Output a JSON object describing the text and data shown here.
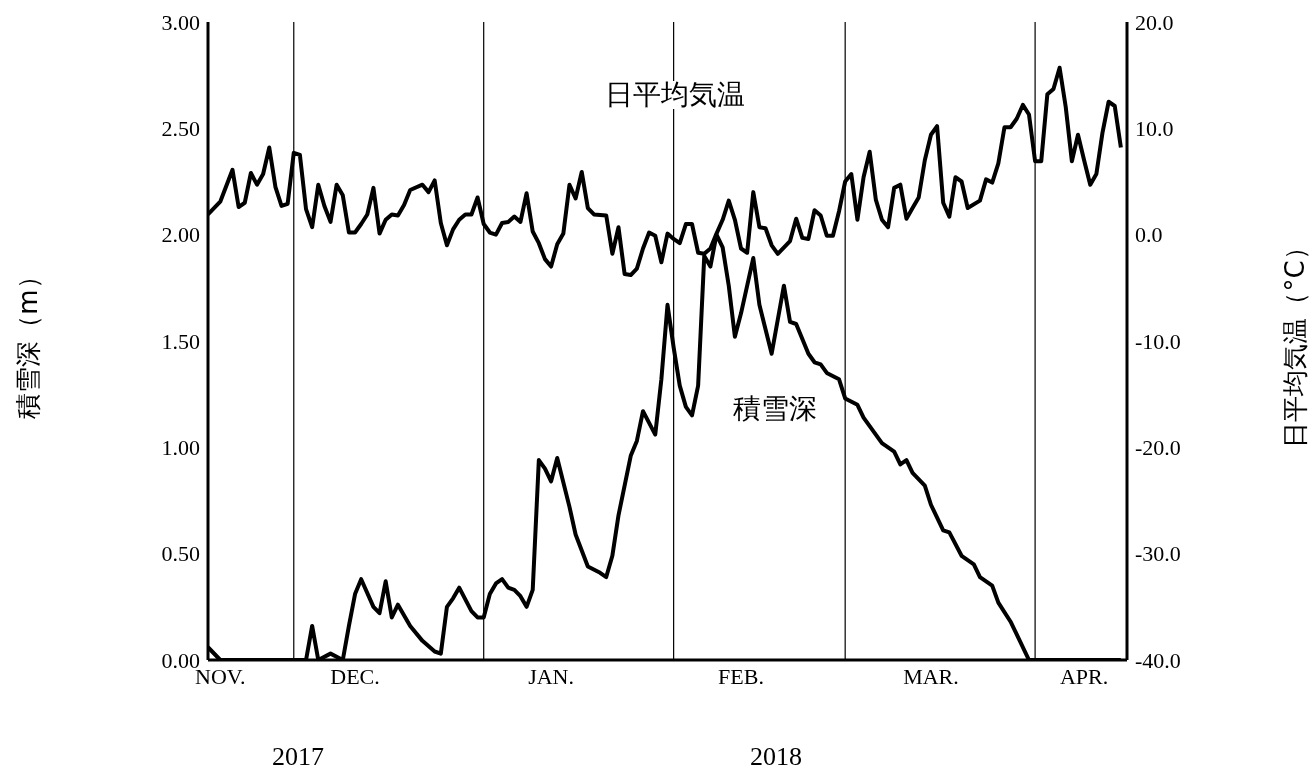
{
  "chart_data": {
    "type": "line",
    "ylabel": "積雪深（m）",
    "y2label": "日平均気温（°C）",
    "xlim": [
      "2017-11-17",
      "2018-04-16"
    ],
    "xticks": [
      {
        "value": "2017-11-19",
        "label": "NOV."
      },
      {
        "value": "2017-12-01",
        "label": null
      },
      {
        "value": "2017-12-11",
        "label": "DEC."
      },
      {
        "value": "2018-01-01",
        "label": null
      },
      {
        "value": "2018-01-12",
        "label": "JAN."
      },
      {
        "value": "2018-02-01",
        "label": null
      },
      {
        "value": "2018-02-12",
        "label": "FEB."
      },
      {
        "value": "2018-03-01",
        "label": null
      },
      {
        "value": "2018-03-15",
        "label": "MAR."
      },
      {
        "value": "2018-04-01",
        "label": null
      },
      {
        "value": "2018-04-09",
        "label": "APR."
      }
    ],
    "ylim": [
      0,
      3
    ],
    "yticks": [
      {
        "value": 0,
        "label": "0.00"
      },
      {
        "value": 0.5,
        "label": "0.50"
      },
      {
        "value": 1,
        "label": "1.00"
      },
      {
        "value": 1.5,
        "label": "1.50"
      },
      {
        "value": 2,
        "label": "2.00"
      },
      {
        "value": 2.5,
        "label": "2.50"
      },
      {
        "value": 3,
        "label": "3.00"
      }
    ],
    "y2lim": [
      -40,
      20
    ],
    "y2ticks": [
      {
        "value": -40,
        "label": "-40.0"
      },
      {
        "value": -30,
        "label": "-30.0"
      },
      {
        "value": -20,
        "label": "-20.0"
      },
      {
        "value": -10,
        "label": "-10.0"
      },
      {
        "value": 0,
        "label": "0.0"
      },
      {
        "value": 10,
        "label": "10.0"
      },
      {
        "value": 20,
        "label": "20.0"
      }
    ],
    "grid": true,
    "legend": false,
    "marker": "none",
    "line_style": "solid",
    "annotations": [
      "2017",
      "2018"
    ],
    "series": [
      {
        "name": "日平均気温",
        "color": "#000000",
        "axis": "y2",
        "x": [
          "2017-11-17",
          "2017-11-19",
          "2017-11-21",
          "2017-11-22",
          "2017-11-23",
          "2017-11-24",
          "2017-11-25",
          "2017-11-26",
          "2017-11-27",
          "2017-11-28",
          "2017-11-29",
          "2017-11-30",
          "2017-12-01",
          "2017-12-02",
          "2017-12-03",
          "2017-12-04",
          "2017-12-05",
          "2017-12-06",
          "2017-12-07",
          "2017-12-08",
          "2017-12-09",
          "2017-12-10",
          "2017-12-11",
          "2017-12-12",
          "2017-12-13",
          "2017-12-14",
          "2017-12-15",
          "2017-12-16",
          "2017-12-17",
          "2017-12-18",
          "2017-12-19",
          "2017-12-20",
          "2017-12-22",
          "2017-12-23",
          "2017-12-24",
          "2017-12-25",
          "2017-12-26",
          "2017-12-27",
          "2017-12-28",
          "2017-12-29",
          "2017-12-30",
          "2017-12-31",
          "2018-01-01",
          "2018-01-02",
          "2018-01-03",
          "2018-01-04",
          "2018-01-05",
          "2018-01-06",
          "2018-01-07",
          "2018-01-08",
          "2018-01-09",
          "2018-01-10",
          "2018-01-11",
          "2018-01-12",
          "2018-01-13",
          "2018-01-14",
          "2018-01-15",
          "2018-01-16",
          "2018-01-17",
          "2018-01-18",
          "2018-01-19",
          "2018-01-21",
          "2018-01-22",
          "2018-01-23",
          "2018-01-24",
          "2018-01-25",
          "2018-01-26",
          "2018-01-27",
          "2018-01-28",
          "2018-01-29",
          "2018-01-30",
          "2018-01-31",
          "2018-02-01",
          "2018-02-02",
          "2018-02-03",
          "2018-02-04",
          "2018-02-05",
          "2018-02-06",
          "2018-02-07",
          "2018-02-08",
          "2018-02-09",
          "2018-02-10",
          "2018-02-11",
          "2018-02-12",
          "2018-02-13",
          "2018-02-14",
          "2018-02-15",
          "2018-02-16",
          "2018-02-17",
          "2018-02-18",
          "2018-02-20",
          "2018-02-21",
          "2018-02-22",
          "2018-02-23",
          "2018-02-24",
          "2018-02-25",
          "2018-02-26",
          "2018-02-27",
          "2018-02-28",
          "2018-03-01",
          "2018-03-02",
          "2018-03-03",
          "2018-03-04",
          "2018-03-05",
          "2018-03-06",
          "2018-03-07",
          "2018-03-08",
          "2018-03-09",
          "2018-03-10",
          "2018-03-11",
          "2018-03-12",
          "2018-03-13",
          "2018-03-14",
          "2018-03-15",
          "2018-03-16",
          "2018-03-17",
          "2018-03-18",
          "2018-03-19",
          "2018-03-20",
          "2018-03-21",
          "2018-03-23",
          "2018-03-24",
          "2018-03-25",
          "2018-03-26",
          "2018-03-27",
          "2018-03-28",
          "2018-03-29",
          "2018-03-30",
          "2018-03-31",
          "2018-04-01",
          "2018-04-02",
          "2018-04-03",
          "2018-04-04",
          "2018-04-05",
          "2018-04-06",
          "2018-04-07",
          "2018-04-08",
          "2018-04-09",
          "2018-04-10",
          "2018-04-11",
          "2018-04-12",
          "2018-04-13",
          "2018-04-14",
          "2018-04-15"
        ],
        "values": [
          1.9,
          3.1,
          6.1,
          2.6,
          3.0,
          5.8,
          4.7,
          5.7,
          8.2,
          4.5,
          2.7,
          2.9,
          7.7,
          7.5,
          2.4,
          0.7,
          4.7,
          2.7,
          1.2,
          4.7,
          3.7,
          0.2,
          0.2,
          1.0,
          1.9,
          4.4,
          0.1,
          1.4,
          1.9,
          1.8,
          2.8,
          4.2,
          4.7,
          4.0,
          5.1,
          1.1,
          -1.0,
          0.5,
          1.4,
          1.9,
          1.9,
          3.5,
          1.0,
          0.2,
          0.0,
          1.1,
          1.2,
          1.7,
          1.2,
          3.9,
          0.3,
          -0.8,
          -2.3,
          -3.0,
          -0.9,
          0.1,
          4.7,
          3.4,
          5.9,
          2.5,
          1.9,
          1.8,
          -1.8,
          0.7,
          -3.7,
          -3.8,
          -3.2,
          -1.3,
          0.2,
          -0.1,
          -2.6,
          0.1,
          -0.4,
          -0.8,
          1.0,
          1.0,
          -1.7,
          -1.8,
          -1.3,
          0.1,
          1.4,
          3.2,
          1.4,
          -1.3,
          -1.7,
          4.0,
          0.7,
          0.6,
          -1.0,
          -1.8,
          -0.6,
          1.5,
          -0.3,
          -0.4,
          2.3,
          1.8,
          -0.1,
          -0.1,
          2.2,
          5.0,
          5.7,
          1.4,
          5.4,
          7.8,
          3.3,
          1.4,
          0.7,
          4.4,
          4.7,
          1.5,
          2.5,
          3.5,
          7.0,
          9.4,
          10.2,
          3.0,
          1.7,
          5.4,
          5.0,
          2.5,
          3.2,
          5.2,
          4.9,
          6.7,
          10.1,
          10.1,
          10.9,
          12.2,
          11.3,
          6.9,
          6.9,
          13.2,
          13.7,
          15.7,
          12.0,
          6.9,
          9.4,
          7.0,
          4.7,
          5.7,
          9.6,
          12.5,
          12.1,
          8.2
        ]
      },
      {
        "name": "積雪深",
        "color": "#000000",
        "x": [
          "2017-11-17",
          "2017-11-19",
          "2017-12-03",
          "2017-12-04",
          "2017-12-05",
          "2017-12-07",
          "2017-12-09",
          "2017-12-10",
          "2017-12-11",
          "2017-12-12",
          "2017-12-14",
          "2017-12-15",
          "2017-12-16",
          "2017-12-17",
          "2017-12-18",
          "2017-12-20",
          "2017-12-22",
          "2017-12-24",
          "2017-12-25",
          "2017-12-26",
          "2017-12-27",
          "2017-12-28",
          "2017-12-30",
          "2017-12-31",
          "2018-01-01",
          "2018-01-02",
          "2018-01-03",
          "2018-01-04",
          "2018-01-05",
          "2018-01-06",
          "2018-01-07",
          "2018-01-08",
          "2018-01-09",
          "2018-01-10",
          "2018-01-11",
          "2018-01-12",
          "2018-01-13",
          "2018-01-15",
          "2018-01-16",
          "2018-01-18",
          "2018-01-20",
          "2018-01-21",
          "2018-01-22",
          "2018-01-23",
          "2018-01-25",
          "2018-01-26",
          "2018-01-27",
          "2018-01-29",
          "2018-01-30",
          "2018-01-31",
          "2018-02-01",
          "2018-02-02",
          "2018-02-03",
          "2018-02-04",
          "2018-02-05",
          "2018-02-06",
          "2018-02-07",
          "2018-02-08",
          "2018-02-09",
          "2018-02-10",
          "2018-02-11",
          "2018-02-12",
          "2018-02-14",
          "2018-02-15",
          "2018-02-17",
          "2018-02-19",
          "2018-02-20",
          "2018-02-21",
          "2018-02-23",
          "2018-02-24",
          "2018-02-25",
          "2018-02-26",
          "2018-02-28",
          "2018-03-01",
          "2018-03-03",
          "2018-03-04",
          "2018-03-06",
          "2018-03-07",
          "2018-03-09",
          "2018-03-10",
          "2018-03-11",
          "2018-03-12",
          "2018-03-14",
          "2018-03-15",
          "2018-03-17",
          "2018-03-18",
          "2018-03-20",
          "2018-03-22",
          "2018-03-23",
          "2018-03-25",
          "2018-03-26",
          "2018-03-28",
          "2018-03-29",
          "2018-03-31",
          "2018-04-15"
        ],
        "values": [
          0.06,
          0,
          0,
          0.16,
          0,
          0.03,
          0,
          0.16,
          0.31,
          0.38,
          0.25,
          0.22,
          0.37,
          0.2,
          0.26,
          0.16,
          0.09,
          0.04,
          0.03,
          0.25,
          0.29,
          0.34,
          0.23,
          0.2,
          0.2,
          0.31,
          0.36,
          0.38,
          0.34,
          0.33,
          0.3,
          0.25,
          0.33,
          0.94,
          0.9,
          0.84,
          0.95,
          0.72,
          0.59,
          0.44,
          0.41,
          0.39,
          0.49,
          0.68,
          0.96,
          1.03,
          1.17,
          1.06,
          1.32,
          1.67,
          1.47,
          1.29,
          1.19,
          1.15,
          1.29,
          1.9,
          1.85,
          2.0,
          1.94,
          1.76,
          1.52,
          1.63,
          1.89,
          1.67,
          1.44,
          1.76,
          1.59,
          1.58,
          1.44,
          1.4,
          1.39,
          1.35,
          1.32,
          1.23,
          1.2,
          1.14,
          1.06,
          1.02,
          0.98,
          0.92,
          0.94,
          0.88,
          0.82,
          0.73,
          0.61,
          0.6,
          0.49,
          0.45,
          0.39,
          0.35,
          0.27,
          0.18,
          0.12,
          0,
          0
        ]
      }
    ]
  }
}
